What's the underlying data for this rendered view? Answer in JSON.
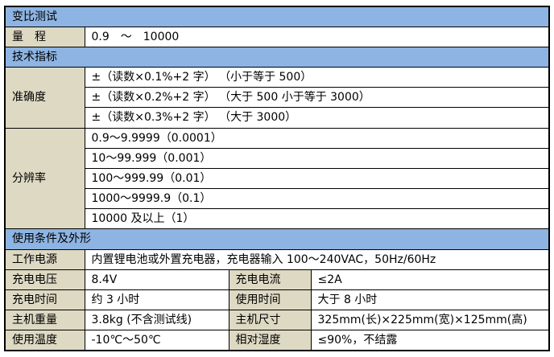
{
  "colors": {
    "section_header_bg": "#8DB4E2",
    "label_cell_bg": "#DDD9C3",
    "value_cell_bg": "#FFFFFF",
    "border_color": "#000000",
    "text_color": "#000000",
    "page_bg": "#FFFFFF"
  },
  "table": {
    "section_ratio_test": {
      "header": "变比测试"
    },
    "range": {
      "label": "量　程",
      "value": "0.9　～　10000"
    },
    "section_tech_specs": {
      "header": "技术指标"
    },
    "accuracy": {
      "label": "准确度",
      "rows": [
        "±（读数×0.1%+2 字） （小于等于 500）",
        "±（读数×0.2%+2 字） （大于 500 小于等于 3000）",
        "±（读数×0.3%+2 字） （大于 3000）"
      ]
    },
    "resolution": {
      "label": "分辨率",
      "rows": [
        "0.9～9.9999（0.0001）",
        "10～99.999（0.001）",
        "100～999.99（0.01）",
        "1000～9999.9（0.1）",
        "10000 及以上（1）"
      ]
    },
    "section_conditions": {
      "header": "使用条件及外形"
    },
    "power_supply": {
      "label": "工作电源",
      "value": "内置锂电池或外置充电器，充电器输入 100～240VAC，50Hz/60Hz"
    },
    "pair_rows": [
      {
        "label_left": "充电电压",
        "value_left": "8.4V",
        "label_right": "充电电流",
        "value_right": "≤2A"
      },
      {
        "label_left": "充电时间",
        "value_left": "约 3 小时",
        "label_right": "使用时间",
        "value_right": "大于 8 小时"
      },
      {
        "label_left": "主机重量",
        "value_left": "3.8kg (不含测试线)",
        "label_right": "主机尺寸",
        "value_right": "325mm(长)×225mm(宽)×125mm(高)"
      },
      {
        "label_left": "使用温度",
        "value_left": "-10℃～50℃",
        "label_right": "相对湿度",
        "value_right": "≤90%，不结露"
      }
    ]
  }
}
